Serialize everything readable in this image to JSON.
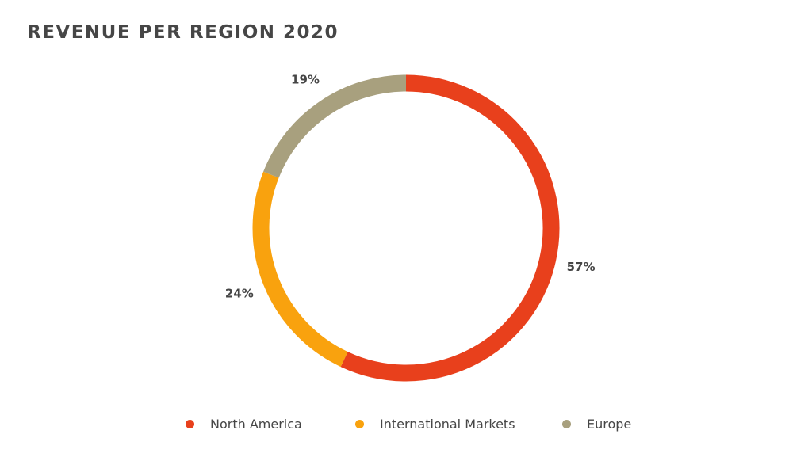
{
  "chart_data": {
    "type": "pie",
    "donut": true,
    "title": "REVENUE PER REGION 2020",
    "slices": [
      {
        "name": "North America",
        "value": 57,
        "label": "57%",
        "color": "#E8401C"
      },
      {
        "name": "International Markets",
        "value": 24,
        "label": "24%",
        "color": "#F9A20E"
      },
      {
        "name": "Europe",
        "value": 19,
        "label": "19%",
        "color": "#A8A07E"
      }
    ],
    "legend": {
      "position": "bottom",
      "items": [
        "North America",
        "International Markets",
        "Europe"
      ]
    }
  }
}
